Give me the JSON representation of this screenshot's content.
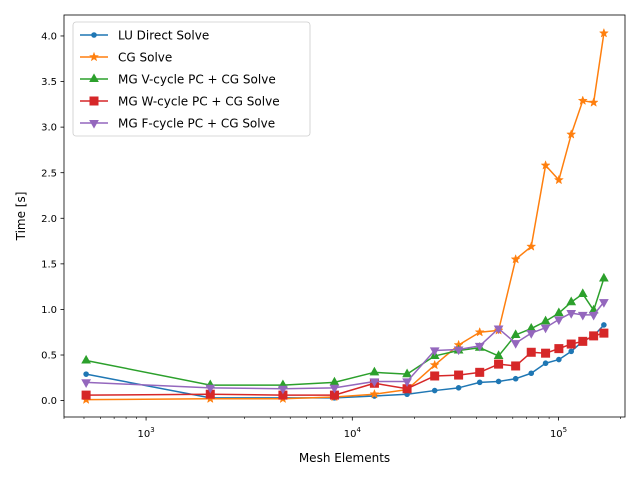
{
  "chart_data": {
    "type": "line",
    "xlabel": "Mesh Elements",
    "ylabel": "Time [s]",
    "xscale": "log",
    "xlim": [
      400,
      210000
    ],
    "ylim": [
      -0.18,
      4.23
    ],
    "grid": false,
    "legend_position": "upper-left",
    "x_ticks": [
      {
        "value": 1000,
        "base": "10",
        "exp": "3"
      },
      {
        "value": 10000,
        "base": "10",
        "exp": "4"
      },
      {
        "value": 100000,
        "base": "10",
        "exp": "5"
      }
    ],
    "y_ticks": [
      {
        "value": 0.0,
        "label": "0.0"
      },
      {
        "value": 0.5,
        "label": "0.5"
      },
      {
        "value": 1.0,
        "label": "1.0"
      },
      {
        "value": 1.5,
        "label": "1.5"
      },
      {
        "value": 2.0,
        "label": "2.0"
      },
      {
        "value": 2.5,
        "label": "2.5"
      },
      {
        "value": 3.0,
        "label": "3.0"
      },
      {
        "value": 3.5,
        "label": "3.5"
      },
      {
        "value": 4.0,
        "label": "4.0"
      }
    ],
    "series": [
      {
        "name": "LU Direct Solve",
        "color": "#1f77b4",
        "marker": "dot",
        "points": [
          [
            512,
            0.29
          ],
          [
            2048,
            0.03
          ],
          [
            4608,
            0.03
          ],
          [
            8192,
            0.03
          ],
          [
            12800,
            0.05
          ],
          [
            18432,
            0.07
          ],
          [
            25088,
            0.11
          ],
          [
            32768,
            0.14
          ],
          [
            41472,
            0.2
          ],
          [
            51200,
            0.21
          ],
          [
            61952,
            0.24
          ],
          [
            73728,
            0.3
          ],
          [
            86528,
            0.41
          ],
          [
            100352,
            0.45
          ],
          [
            115200,
            0.54
          ],
          [
            131072,
            0.65
          ],
          [
            147968,
            0.71
          ],
          [
            165888,
            0.83
          ]
        ]
      },
      {
        "name": "CG Solve",
        "color": "#ff7f0e",
        "marker": "star",
        "points": [
          [
            512,
            0.01
          ],
          [
            2048,
            0.02
          ],
          [
            4608,
            0.02
          ],
          [
            8192,
            0.04
          ],
          [
            12800,
            0.07
          ],
          [
            18432,
            0.12
          ],
          [
            25088,
            0.39
          ],
          [
            32768,
            0.61
          ],
          [
            41472,
            0.75
          ],
          [
            51200,
            0.77
          ],
          [
            61952,
            1.55
          ],
          [
            73728,
            1.69
          ],
          [
            86528,
            2.58
          ],
          [
            100352,
            2.42
          ],
          [
            115200,
            2.92
          ],
          [
            131072,
            3.29
          ],
          [
            147968,
            3.27
          ],
          [
            165888,
            4.03
          ]
        ]
      },
      {
        "name": "MG V-cycle PC + CG Solve",
        "color": "#2ca02c",
        "marker": "triangle-up",
        "points": [
          [
            512,
            0.44
          ],
          [
            2048,
            0.17
          ],
          [
            4608,
            0.17
          ],
          [
            8192,
            0.2
          ],
          [
            12800,
            0.31
          ],
          [
            18432,
            0.29
          ],
          [
            25088,
            0.49
          ],
          [
            32768,
            0.55
          ],
          [
            41472,
            0.58
          ],
          [
            51200,
            0.49
          ],
          [
            61952,
            0.72
          ],
          [
            73728,
            0.79
          ],
          [
            86528,
            0.87
          ],
          [
            100352,
            0.96
          ],
          [
            115200,
            1.08
          ],
          [
            131072,
            1.17
          ],
          [
            147968,
            0.99
          ],
          [
            165888,
            1.34
          ]
        ]
      },
      {
        "name": "MG W-cycle PC + CG Solve",
        "color": "#d62728",
        "marker": "square",
        "points": [
          [
            512,
            0.06
          ],
          [
            2048,
            0.07
          ],
          [
            4608,
            0.06
          ],
          [
            8192,
            0.06
          ],
          [
            12800,
            0.19
          ],
          [
            18432,
            0.13
          ],
          [
            25088,
            0.27
          ],
          [
            32768,
            0.28
          ],
          [
            41472,
            0.31
          ],
          [
            51200,
            0.4
          ],
          [
            61952,
            0.38
          ],
          [
            73728,
            0.53
          ],
          [
            86528,
            0.52
          ],
          [
            100352,
            0.57
          ],
          [
            115200,
            0.62
          ],
          [
            131072,
            0.65
          ],
          [
            147968,
            0.71
          ],
          [
            165888,
            0.74
          ]
        ]
      },
      {
        "name": "MG F-cycle PC + CG Solve",
        "color": "#9467bd",
        "marker": "triangle-down",
        "points": [
          [
            512,
            0.2
          ],
          [
            2048,
            0.14
          ],
          [
            4608,
            0.13
          ],
          [
            8192,
            0.14
          ],
          [
            12800,
            0.21
          ],
          [
            18432,
            0.21
          ],
          [
            25088,
            0.55
          ],
          [
            32768,
            0.56
          ],
          [
            41472,
            0.6
          ],
          [
            51200,
            0.79
          ],
          [
            61952,
            0.63
          ],
          [
            73728,
            0.74
          ],
          [
            86528,
            0.8
          ],
          [
            100352,
            0.89
          ],
          [
            115200,
            0.96
          ],
          [
            131072,
            0.94
          ],
          [
            147968,
            0.94
          ],
          [
            165888,
            1.08
          ]
        ]
      }
    ]
  }
}
